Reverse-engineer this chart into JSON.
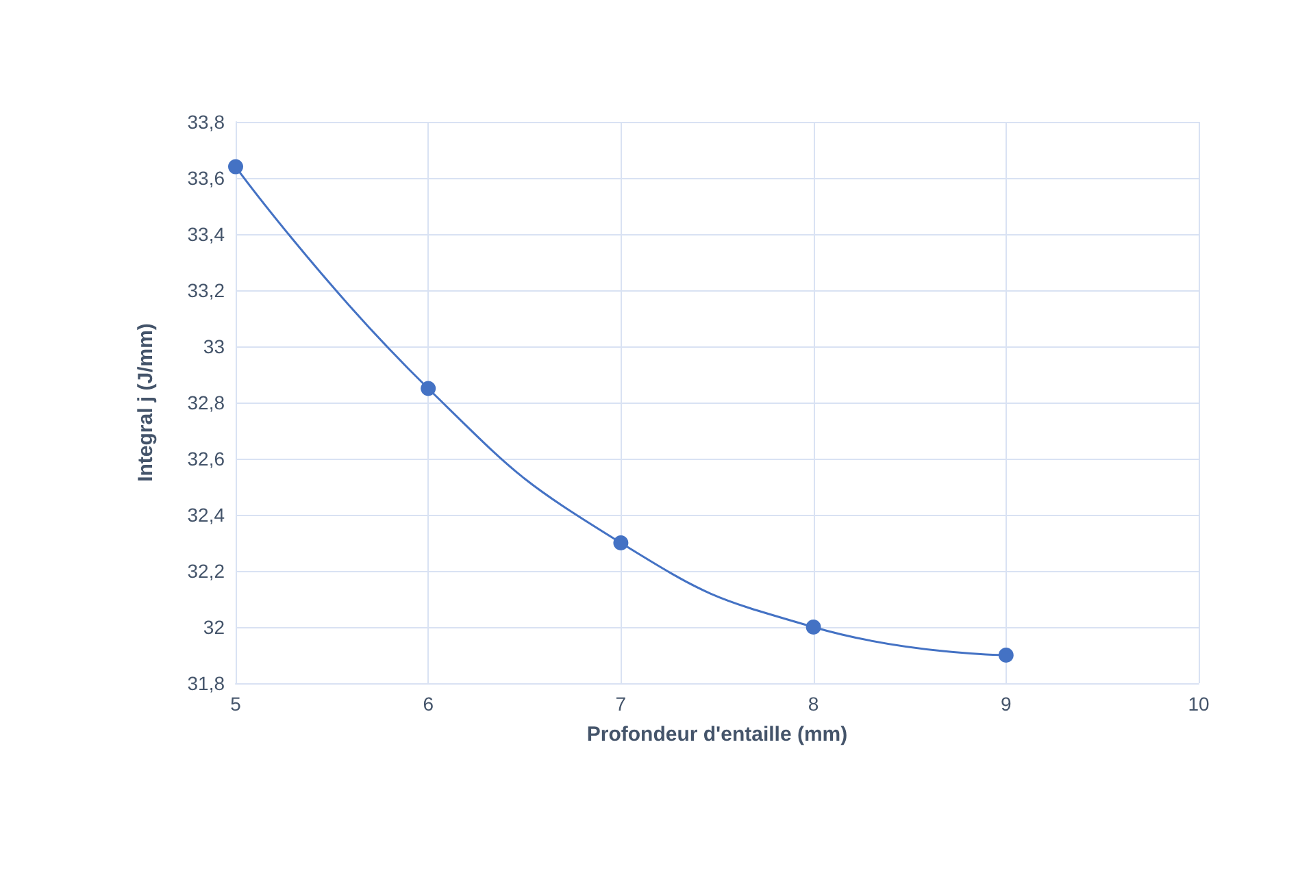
{
  "chart_data": {
    "type": "line",
    "xlabel": "Profondeur d'entaille (mm)",
    "ylabel": "Integral j (J/mm)",
    "x": [
      5,
      6,
      7,
      8,
      9
    ],
    "series": [
      {
        "color": "#4472c4",
        "values": [
          33.64,
          32.85,
          32.3,
          32.0,
          31.9
        ]
      }
    ],
    "xlim": [
      5,
      10
    ],
    "xticks": [
      5,
      6,
      7,
      8,
      9,
      10
    ],
    "ylim": [
      31.8,
      33.8
    ],
    "yticks": [
      {
        "value": 31.8,
        "label": "31,8"
      },
      {
        "value": 32,
        "label": "32"
      },
      {
        "value": 32.2,
        "label": "32,2"
      },
      {
        "value": 32.4,
        "label": "32,4"
      },
      {
        "value": 32.6,
        "label": "32,6"
      },
      {
        "value": 32.8,
        "label": "32,8"
      },
      {
        "value": 33,
        "label": "33"
      },
      {
        "value": 33.2,
        "label": "33,2"
      },
      {
        "value": 33.4,
        "label": "33,4"
      },
      {
        "value": 33.6,
        "label": "33,6"
      },
      {
        "value": 33.8,
        "label": "33,8"
      }
    ],
    "grid": true,
    "marker": "circle",
    "line_style": "solid"
  }
}
